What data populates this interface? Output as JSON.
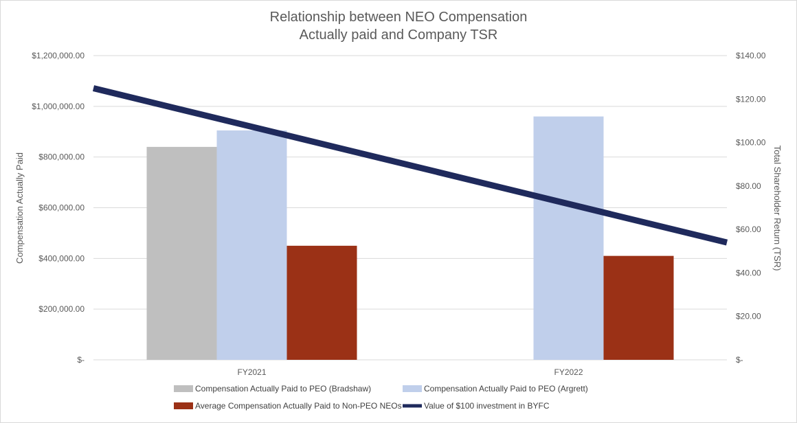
{
  "chart_data": {
    "type": "bar",
    "title_lines": [
      "Relationship between NEO Compensation",
      "Actually paid and Company TSR"
    ],
    "categories": [
      "FY2021",
      "FY2022"
    ],
    "ylabel_left": "Compensation Actually Paid",
    "ylabel_right": "Total Shareholder Return (TSR)",
    "ylim_left": [
      0,
      1200000
    ],
    "ylim_right": [
      0,
      140
    ],
    "left_ticks": [
      {
        "value": 0,
        "label": "$-"
      },
      {
        "value": 200000,
        "label": "$200,000.00"
      },
      {
        "value": 400000,
        "label": "$400,000.00"
      },
      {
        "value": 600000,
        "label": "$600,000.00"
      },
      {
        "value": 800000,
        "label": "$800,000.00"
      },
      {
        "value": 1000000,
        "label": "$1,000,000.00"
      },
      {
        "value": 1200000,
        "label": "$1,200,000.00"
      }
    ],
    "right_ticks": [
      {
        "value": 0,
        "label": "$-"
      },
      {
        "value": 20,
        "label": "$20.00"
      },
      {
        "value": 40,
        "label": "$40.00"
      },
      {
        "value": 60,
        "label": "$60.00"
      },
      {
        "value": 80,
        "label": "$80.00"
      },
      {
        "value": 100,
        "label": "$100.00"
      },
      {
        "value": 120,
        "label": "$120.00"
      },
      {
        "value": 140,
        "label": "$140.00"
      }
    ],
    "series": [
      {
        "name": "Compensation Actually Paid to PEO (Bradshaw)",
        "kind": "bar",
        "axis": "left",
        "color": "#bfbfbf",
        "values": [
          840000,
          null
        ]
      },
      {
        "name": "Compensation Actually Paid to PEO (Argrett)",
        "kind": "bar",
        "axis": "left",
        "color": "#c0cfeb",
        "values": [
          905000,
          960000
        ]
      },
      {
        "name": "Average Compensation Actually Paid to Non-PEO NEOs",
        "kind": "bar",
        "axis": "left",
        "color": "#9b3116",
        "values": [
          450000,
          410000
        ]
      },
      {
        "name": "Value of $100 investment in BYFC",
        "kind": "line",
        "axis": "right",
        "color": "#1f2a5c",
        "values": [
          125,
          54
        ]
      }
    ],
    "grid": true,
    "legend_position": "bottom"
  }
}
